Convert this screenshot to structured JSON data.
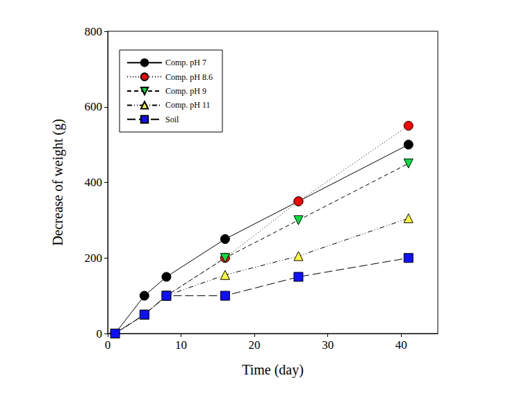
{
  "chart_data": {
    "type": "line",
    "x_label": "Time (day)",
    "y_label": "Decrease of weight (g)",
    "xlim": [
      0,
      45
    ],
    "xticks": [
      0,
      10,
      20,
      30,
      40
    ],
    "ylim": [
      0,
      800
    ],
    "yticks": [
      0,
      200,
      400,
      600,
      800
    ],
    "grid": false,
    "legend": "upper left",
    "series": [
      {
        "name": "Comp. pH 7",
        "color": "#000000",
        "marker": "circle",
        "line_style": "solid",
        "x": [
          1,
          5,
          8,
          16,
          26,
          41
        ],
        "values": [
          0,
          100,
          150,
          250,
          350,
          500
        ]
      },
      {
        "name": "Comp. pH 8.6",
        "color": "#ff0000",
        "marker": "circle",
        "line_style": "dotted",
        "x": [
          1,
          5,
          8,
          16,
          26,
          41
        ],
        "values": [
          0,
          50,
          100,
          200,
          350,
          550
        ]
      },
      {
        "name": "Comp. pH 9",
        "color": "#00e040",
        "marker": "triangle-down",
        "line_style": "dashed",
        "x": [
          1,
          5,
          8,
          16,
          26,
          41
        ],
        "values": [
          0,
          50,
          100,
          200,
          300,
          450
        ]
      },
      {
        "name": "Comp. pH 11",
        "color": "#ffff40",
        "marker": "triangle",
        "line_style": "dashdot",
        "x": [
          1,
          5,
          8,
          16,
          26,
          41
        ],
        "values": [
          0,
          50,
          100,
          155,
          205,
          305
        ]
      },
      {
        "name": "Soil",
        "color": "#1010ff",
        "marker": "square",
        "line_style": "longdash",
        "x": [
          1,
          5,
          8,
          16,
          26,
          41
        ],
        "values": [
          0,
          50,
          100,
          100,
          150,
          200
        ]
      }
    ]
  }
}
